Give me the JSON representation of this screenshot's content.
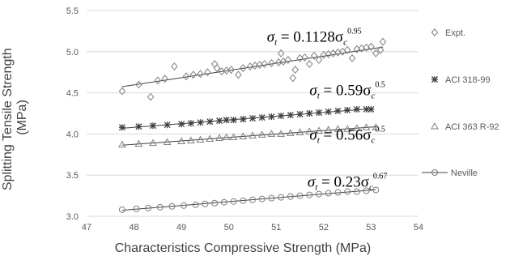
{
  "chart_data": {
    "type": "scatter",
    "xlabel": "Characteristics Compressive Strength (MPa)",
    "ylabel_lines": [
      "Splitting Tensile Strength",
      "(MPa)"
    ],
    "xlim": [
      47,
      54
    ],
    "ylim": [
      3.0,
      5.5
    ],
    "x_ticks": [
      "47",
      "48",
      "49",
      "50",
      "51",
      "52",
      "53",
      "54"
    ],
    "y_ticks": [
      "3.0",
      "3.5",
      "4.0",
      "4.5",
      "5.0",
      "5.5"
    ],
    "grid": true,
    "legend_position": "right",
    "series": [
      {
        "name": "Expt.",
        "marker": "diamond",
        "x": [
          47.75,
          48.1,
          48.35,
          48.5,
          48.65,
          48.85,
          49.1,
          49.25,
          49.4,
          49.55,
          49.7,
          49.75,
          49.85,
          49.95,
          50.05,
          50.2,
          50.3,
          50.45,
          50.55,
          50.65,
          50.75,
          50.9,
          51.05,
          51.1,
          51.15,
          51.25,
          51.35,
          51.4,
          51.5,
          51.6,
          51.7,
          51.8,
          51.9,
          52.0,
          52.1,
          52.2,
          52.3,
          52.4,
          52.5,
          52.6,
          52.7,
          52.8,
          52.9,
          53.0,
          53.1,
          53.2,
          53.25
        ],
        "y": [
          4.52,
          4.6,
          4.45,
          4.65,
          4.67,
          4.82,
          4.7,
          4.72,
          4.73,
          4.75,
          4.85,
          4.8,
          4.76,
          4.77,
          4.78,
          4.72,
          4.8,
          4.82,
          4.83,
          4.84,
          4.85,
          4.86,
          4.87,
          4.98,
          4.88,
          4.9,
          4.68,
          4.78,
          4.92,
          4.93,
          4.85,
          4.95,
          4.9,
          4.96,
          4.97,
          4.98,
          4.99,
          5.0,
          5.02,
          4.92,
          5.03,
          5.04,
          5.05,
          5.06,
          4.98,
          5.02,
          5.12
        ]
      },
      {
        "name": "ACI 318-99",
        "marker": "star",
        "x": [
          47.75,
          48.1,
          48.4,
          48.7,
          49.0,
          49.2,
          49.4,
          49.6,
          49.8,
          49.95,
          50.1,
          50.3,
          50.5,
          50.7,
          50.9,
          51.1,
          51.3,
          51.5,
          51.7,
          51.9,
          52.1,
          52.3,
          52.5,
          52.7,
          52.9,
          53.0
        ],
        "y": [
          4.08,
          4.09,
          4.1,
          4.11,
          4.12,
          4.13,
          4.14,
          4.15,
          4.16,
          4.17,
          4.17,
          4.18,
          4.19,
          4.2,
          4.21,
          4.22,
          4.23,
          4.24,
          4.25,
          4.26,
          4.27,
          4.28,
          4.29,
          4.3,
          4.3,
          4.3
        ]
      },
      {
        "name": "ACI 363 R-92",
        "marker": "triangle",
        "x": [
          47.75,
          48.1,
          48.4,
          48.7,
          49.0,
          49.2,
          49.4,
          49.6,
          49.8,
          49.95,
          50.1,
          50.3,
          50.5,
          50.7,
          50.9,
          51.1,
          51.3,
          51.5,
          51.7,
          51.9,
          52.1,
          52.3,
          52.5,
          52.7,
          52.9,
          53.1
        ],
        "y": [
          3.87,
          3.88,
          3.89,
          3.9,
          3.91,
          3.92,
          3.93,
          3.94,
          3.95,
          3.96,
          3.96,
          3.97,
          3.98,
          3.99,
          4.0,
          4.0,
          4.01,
          4.02,
          4.03,
          4.04,
          4.05,
          4.06,
          4.06,
          4.07,
          4.08,
          4.08
        ]
      },
      {
        "name": "Neville",
        "marker": "circle",
        "x": [
          47.75,
          48.05,
          48.3,
          48.55,
          48.8,
          49.05,
          49.3,
          49.5,
          49.7,
          49.9,
          50.1,
          50.3,
          50.5,
          50.7,
          50.9,
          51.1,
          51.3,
          51.5,
          51.7,
          51.9,
          52.1,
          52.3,
          52.5,
          52.7,
          52.9,
          53.1
        ],
        "y": [
          3.08,
          3.09,
          3.1,
          3.11,
          3.12,
          3.13,
          3.14,
          3.15,
          3.16,
          3.17,
          3.18,
          3.19,
          3.2,
          3.21,
          3.22,
          3.23,
          3.24,
          3.25,
          3.26,
          3.27,
          3.28,
          3.29,
          3.3,
          3.3,
          3.31,
          3.32
        ]
      }
    ],
    "annotations": [
      {
        "series": "Expt.",
        "base": "σ",
        "sub": "t",
        "rhs": " = 0.1128σ",
        "sub2": "c",
        "exp": "0.95",
        "x": 51.8,
        "y": 5.12
      },
      {
        "series": "ACI 318-99",
        "base": "σ",
        "sub": "t",
        "rhs": " = 0.59σ",
        "sub2": "c",
        "exp": "0.5",
        "x": 52.5,
        "y": 4.47
      },
      {
        "series": "ACI 363 R-92",
        "base": "σ",
        "sub": "t",
        "rhs": " = 0.56σ",
        "sub2": "c",
        "exp": "0.5",
        "x": 52.5,
        "y": 3.93
      },
      {
        "series": "Neville",
        "base": "σ",
        "sub": "t",
        "rhs": " = 0.23σ",
        "sub2": "c",
        "exp": "0.67",
        "x": 52.5,
        "y": 3.36
      }
    ]
  }
}
